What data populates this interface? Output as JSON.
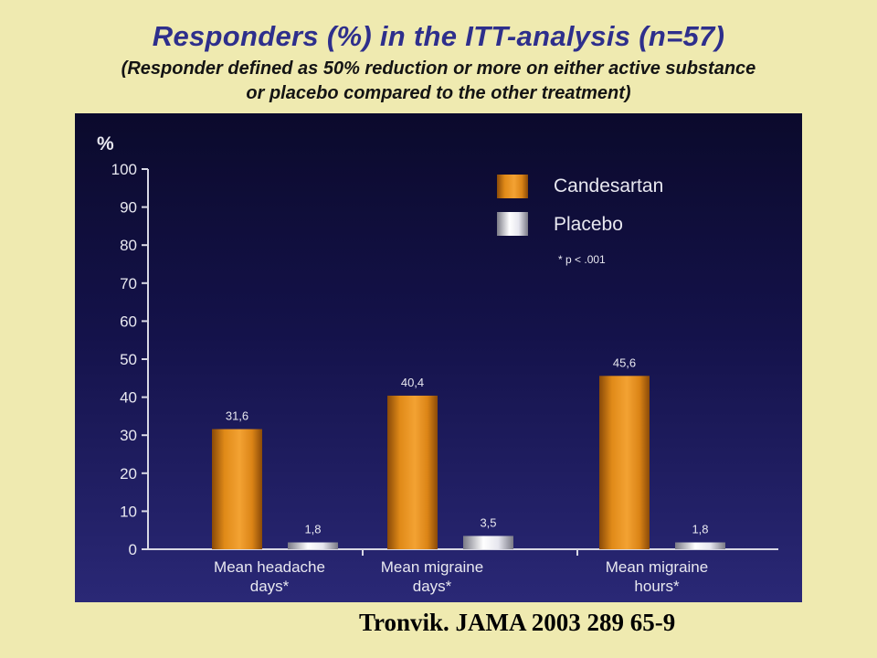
{
  "title": "Responders (%) in the ITT-analysis (n=57)",
  "subtitle_line1": "(Responder defined as 50% reduction or more on either active substance",
  "subtitle_line2": "or placebo compared to the other treatment)",
  "citation": "Tronvik.  JAMA 2003  289 65-9",
  "chart_data": {
    "type": "bar",
    "ylabel": "%",
    "ylim": [
      0,
      100
    ],
    "yticks": [
      0,
      10,
      20,
      30,
      40,
      50,
      60,
      70,
      80,
      90,
      100
    ],
    "categories": [
      [
        "Mean headache",
        "days*"
      ],
      [
        "Mean migraine",
        "days*"
      ],
      [
        "Mean migraine",
        "hours*"
      ]
    ],
    "series": [
      {
        "name": "Candesartan",
        "color": "#e8901c",
        "values": [
          31.6,
          40.4,
          45.6
        ],
        "labels": [
          "31,6",
          "40,4",
          "45,6"
        ]
      },
      {
        "name": "Placebo",
        "color": "#e4e4ea",
        "values": [
          1.8,
          3.5,
          1.8
        ],
        "labels": [
          "1,8",
          "3,5",
          "1,8"
        ]
      }
    ],
    "footnote": "* p < .001",
    "legend": "top-right",
    "grid": false
  }
}
